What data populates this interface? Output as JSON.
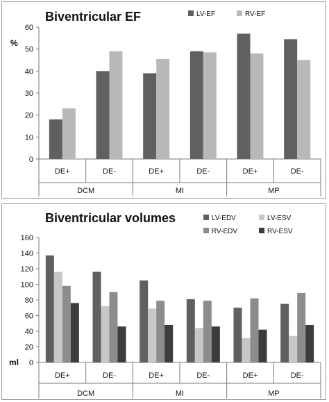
{
  "chart_data": [
    {
      "type": "bar",
      "title": "Biventricular EF",
      "ylabel": "%",
      "ylim": [
        0,
        60
      ],
      "yticks": [
        0,
        10,
        20,
        30,
        40,
        50,
        60
      ],
      "grid": false,
      "legend_position": "top-right",
      "group_labels": [
        "DCM",
        "MI",
        "MP"
      ],
      "categories": [
        "DE+",
        "DE-",
        "DE+",
        "DE-",
        "DE+",
        "DE-"
      ],
      "series": [
        {
          "name": "LV-EF",
          "color": "#606060",
          "values": [
            18,
            40,
            39,
            49,
            57,
            54.5
          ]
        },
        {
          "name": "RV-EF",
          "color": "#b8b8b8",
          "values": [
            23,
            49,
            45.5,
            48.5,
            48,
            45
          ]
        }
      ]
    },
    {
      "type": "bar",
      "title": "Biventricular volumes",
      "ylabel": "ml",
      "ylim": [
        0,
        160
      ],
      "yticks": [
        0,
        20,
        40,
        60,
        80,
        100,
        120,
        140,
        160
      ],
      "grid": false,
      "legend_position": "top-right",
      "group_labels": [
        "DCM",
        "MI",
        "MP"
      ],
      "categories": [
        "DE+",
        "DE-",
        "DE+",
        "DE-",
        "DE+",
        "DE-"
      ],
      "series": [
        {
          "name": "LV-EDV",
          "color": "#606060",
          "values": [
            137,
            116,
            105,
            81,
            70,
            75
          ]
        },
        {
          "name": "LV-ESV",
          "color": "#c8c8c8",
          "values": [
            116,
            72,
            69,
            44,
            31,
            34
          ]
        },
        {
          "name": "RV-EDV",
          "color": "#8c8c8c",
          "values": [
            98,
            90,
            79,
            79,
            82,
            89
          ]
        },
        {
          "name": "RV-ESV",
          "color": "#3c3c3c",
          "values": [
            76,
            46,
            48,
            46,
            42,
            48
          ]
        }
      ]
    }
  ]
}
